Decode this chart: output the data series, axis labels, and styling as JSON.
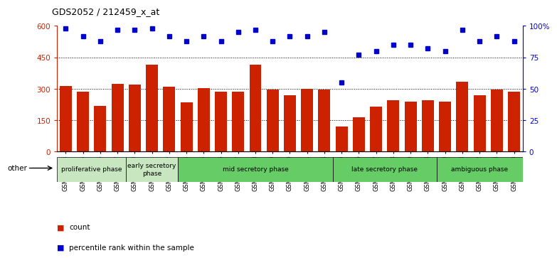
{
  "title": "GDS2052 / 212459_x_at",
  "samples": [
    "GSM109814",
    "GSM109815",
    "GSM109816",
    "GSM109817",
    "GSM109820",
    "GSM109821",
    "GSM109822",
    "GSM109824",
    "GSM109825",
    "GSM109826",
    "GSM109827",
    "GSM109828",
    "GSM109829",
    "GSM109830",
    "GSM109831",
    "GSM109834",
    "GSM109835",
    "GSM109836",
    "GSM109837",
    "GSM109838",
    "GSM109839",
    "GSM109818",
    "GSM109819",
    "GSM109823",
    "GSM109832",
    "GSM109833",
    "GSM109840"
  ],
  "counts": [
    315,
    285,
    220,
    325,
    320,
    415,
    310,
    235,
    305,
    285,
    285,
    415,
    295,
    270,
    300,
    295,
    120,
    165,
    215,
    245,
    240,
    245,
    240,
    335,
    270,
    295,
    285
  ],
  "percentiles": [
    98,
    92,
    88,
    97,
    97,
    98,
    92,
    88,
    92,
    88,
    95,
    97,
    88,
    92,
    92,
    95,
    55,
    77,
    80,
    85,
    85,
    82,
    80,
    97,
    88,
    92,
    88
  ],
  "phases": [
    {
      "label": "proliferative phase",
      "start": 0,
      "end": 4,
      "color": "#c8e6c0"
    },
    {
      "label": "early secretory\nphase",
      "start": 4,
      "end": 7,
      "color": "#c8e6c0"
    },
    {
      "label": "mid secretory phase",
      "start": 7,
      "end": 16,
      "color": "#66cc66"
    },
    {
      "label": "late secretory phase",
      "start": 16,
      "end": 22,
      "color": "#66cc66"
    },
    {
      "label": "ambiguous phase",
      "start": 22,
      "end": 27,
      "color": "#66cc66"
    }
  ],
  "bar_color": "#cc2200",
  "dot_color": "#0000cc",
  "ylim_left": [
    0,
    600
  ],
  "ylim_right": [
    0,
    100
  ],
  "yticks_left": [
    0,
    150,
    300,
    450,
    600
  ],
  "yticks_right": [
    0,
    25,
    50,
    75,
    100
  ],
  "yticklabels_left": [
    "0",
    "150",
    "300",
    "450",
    "600"
  ],
  "yticklabels_right": [
    "0",
    "25",
    "50",
    "75",
    "100%"
  ],
  "grid_values": [
    150,
    300,
    450
  ],
  "bar_area_color": "#ffffff"
}
